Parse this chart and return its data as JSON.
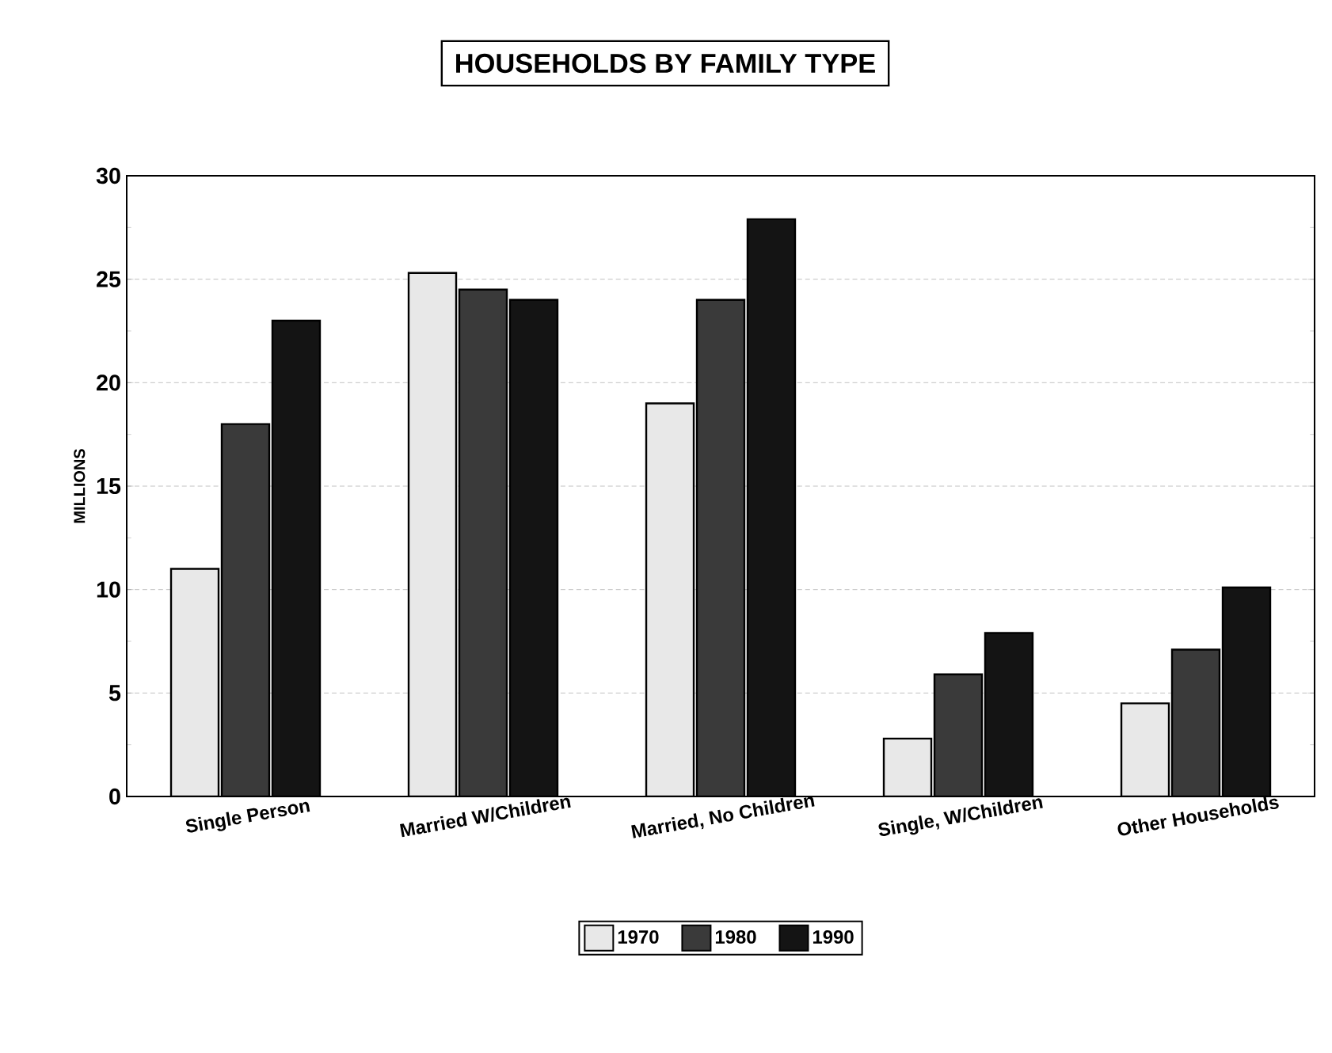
{
  "chart_data": {
    "type": "bar",
    "title": "HOUSEHOLDS BY FAMILY TYPE",
    "ylabel": "MILLIONS",
    "categories": [
      "Single Person",
      "Married W/Children",
      "Married, No Children",
      "Single, W/Children",
      "Other Households"
    ],
    "series": [
      {
        "name": "1970",
        "color": "#e8e8e8",
        "values": [
          11,
          25.3,
          19,
          2.8,
          4.5
        ]
      },
      {
        "name": "1980",
        "color": "#3a3a3a",
        "values": [
          18,
          24.5,
          24,
          5.9,
          7.1
        ]
      },
      {
        "name": "1990",
        "color": "#141414",
        "values": [
          23,
          24,
          27.9,
          7.9,
          10.1
        ]
      }
    ],
    "ylim": [
      0,
      30
    ],
    "yticks": [
      0,
      5,
      10,
      15,
      20,
      25,
      30
    ],
    "grid": "y",
    "legend": "bottom"
  }
}
